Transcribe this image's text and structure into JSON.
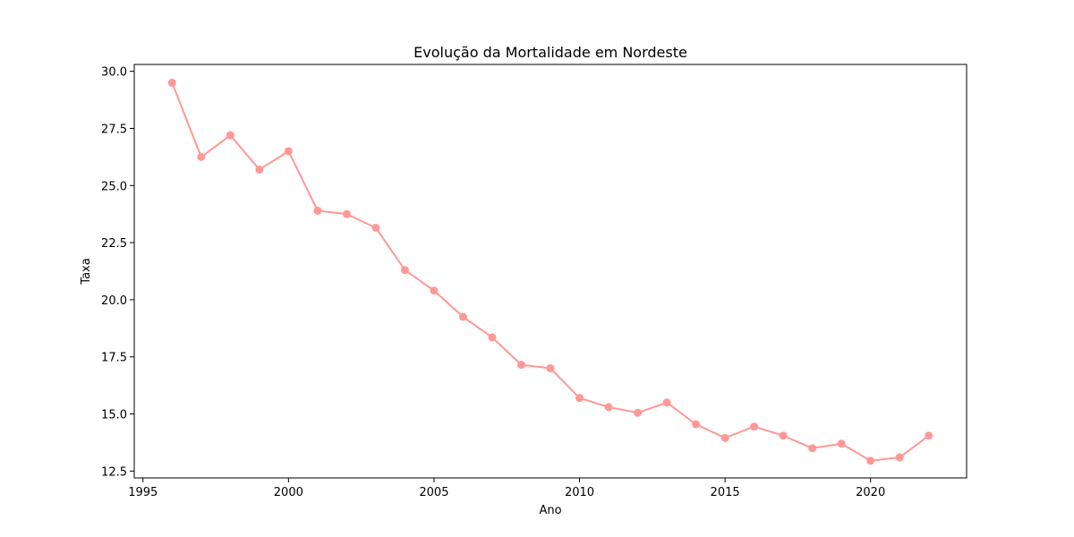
{
  "chart_data": {
    "type": "line",
    "title": "Evolução da Mortalidade em Nordeste",
    "xlabel": "Ano",
    "ylabel": "Taxa",
    "xlim": [
      1994.7,
      2023.3
    ],
    "ylim": [
      12.2,
      30.3
    ],
    "xticks": [
      1995,
      2000,
      2005,
      2010,
      2015,
      2020
    ],
    "yticks": [
      12.5,
      15.0,
      17.5,
      20.0,
      22.5,
      25.0,
      27.5,
      30.0
    ],
    "ytick_labels": [
      "12.5",
      "15.0",
      "17.5",
      "20.0",
      "22.5",
      "25.0",
      "27.5",
      "30.0"
    ],
    "grid": false,
    "series": [
      {
        "color": "#ff9896",
        "marker": "circle",
        "x": [
          1996,
          1997,
          1998,
          1999,
          2000,
          2001,
          2002,
          2003,
          2004,
          2005,
          2006,
          2007,
          2008,
          2009,
          2010,
          2011,
          2012,
          2013,
          2014,
          2015,
          2016,
          2017,
          2018,
          2019,
          2020,
          2021,
          2022
        ],
        "y": [
          29.5,
          26.25,
          27.2,
          25.7,
          26.5,
          23.9,
          23.75,
          23.15,
          21.3,
          20.4,
          19.25,
          18.35,
          17.15,
          17.0,
          15.7,
          15.3,
          15.05,
          15.5,
          14.55,
          13.95,
          14.45,
          14.05,
          13.5,
          13.7,
          12.95,
          13.1,
          14.05
        ]
      }
    ]
  }
}
